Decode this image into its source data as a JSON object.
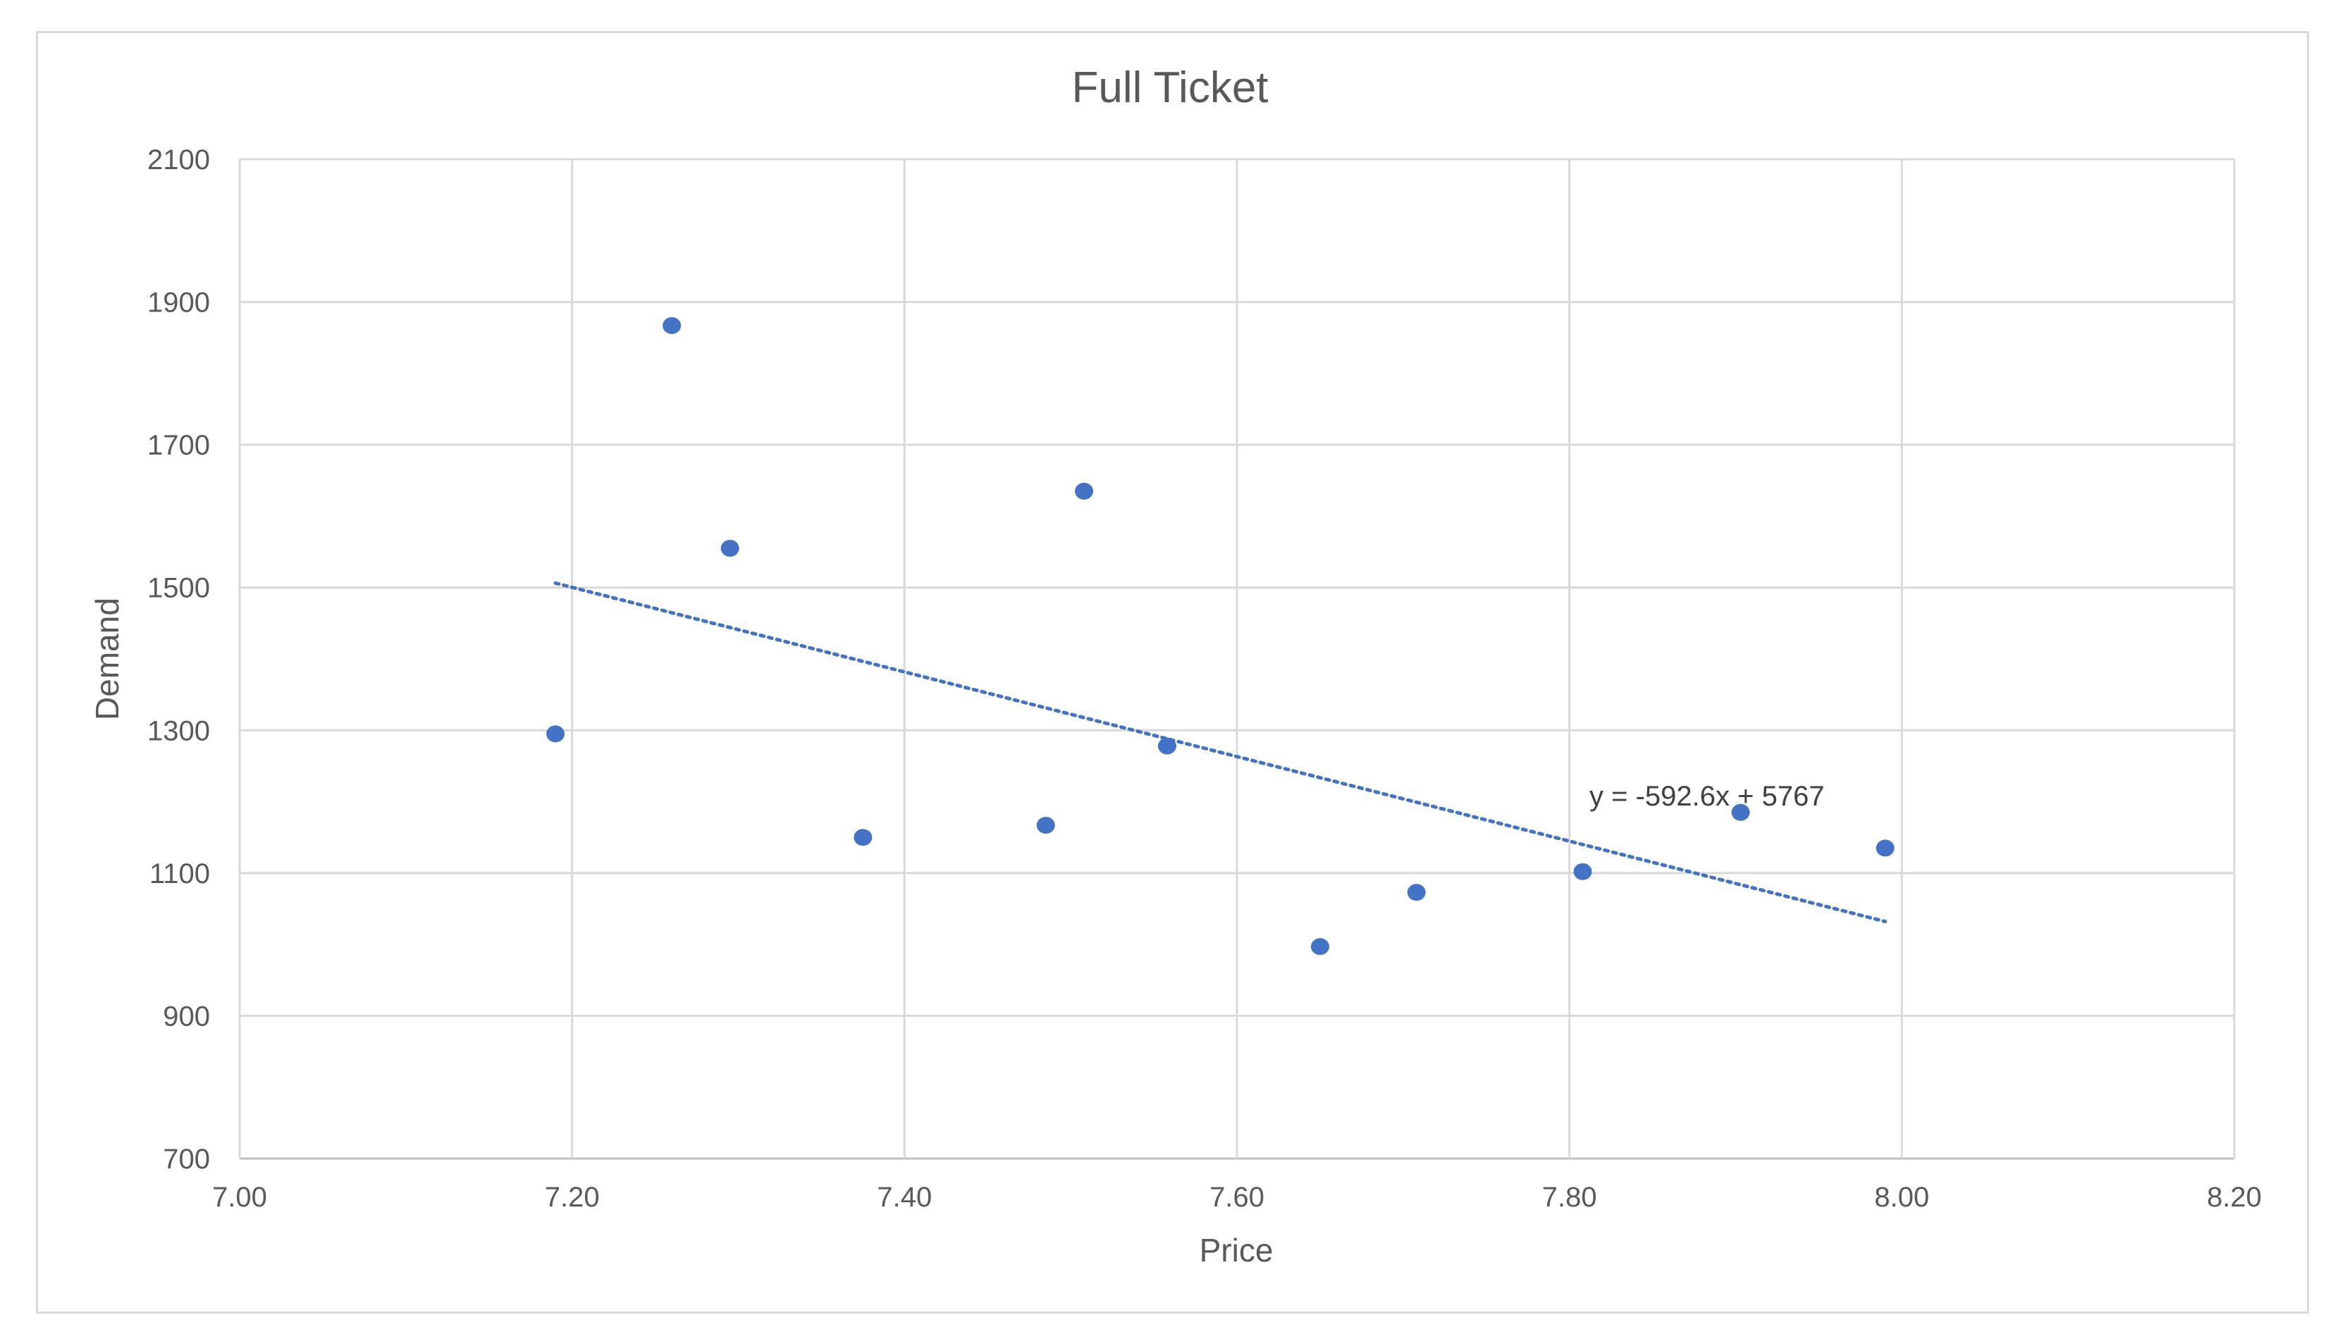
{
  "chart_data": {
    "type": "scatter",
    "title": "Full Ticket",
    "xlabel": "Price",
    "ylabel": "Demand",
    "xlim": [
      7.0,
      8.2
    ],
    "ylim": [
      700,
      2100
    ],
    "x_ticks": [
      7.0,
      7.2,
      7.4,
      7.6,
      7.8,
      8.0,
      8.2
    ],
    "x_tick_labels": [
      "7.00",
      "7.20",
      "7.40",
      "7.60",
      "7.80",
      "8.00",
      "8.20"
    ],
    "y_ticks": [
      700,
      900,
      1100,
      1300,
      1500,
      1700,
      1900,
      2100
    ],
    "y_tick_labels": [
      "700",
      "900",
      "1100",
      "1300",
      "1500",
      "1700",
      "1900",
      "2100"
    ],
    "grid": true,
    "legend": "none",
    "marker_color": "#4472C4",
    "series": [
      {
        "points": [
          {
            "x": 7.19,
            "y": 1295
          },
          {
            "x": 7.26,
            "y": 1867
          },
          {
            "x": 7.295,
            "y": 1555
          },
          {
            "x": 7.375,
            "y": 1150
          },
          {
            "x": 7.485,
            "y": 1167
          },
          {
            "x": 7.508,
            "y": 1635
          },
          {
            "x": 7.558,
            "y": 1278
          },
          {
            "x": 7.65,
            "y": 997
          },
          {
            "x": 7.708,
            "y": 1073
          },
          {
            "x": 7.808,
            "y": 1102
          },
          {
            "x": 7.903,
            "y": 1185
          },
          {
            "x": 7.99,
            "y": 1135
          }
        ]
      }
    ],
    "trendline": {
      "type": "linear",
      "style": "dotted",
      "color": "#4472C4",
      "slope": -592.6,
      "intercept": 5767,
      "x_range": [
        7.19,
        7.99
      ],
      "equation_label": "y = -592.6x + 5767"
    }
  }
}
